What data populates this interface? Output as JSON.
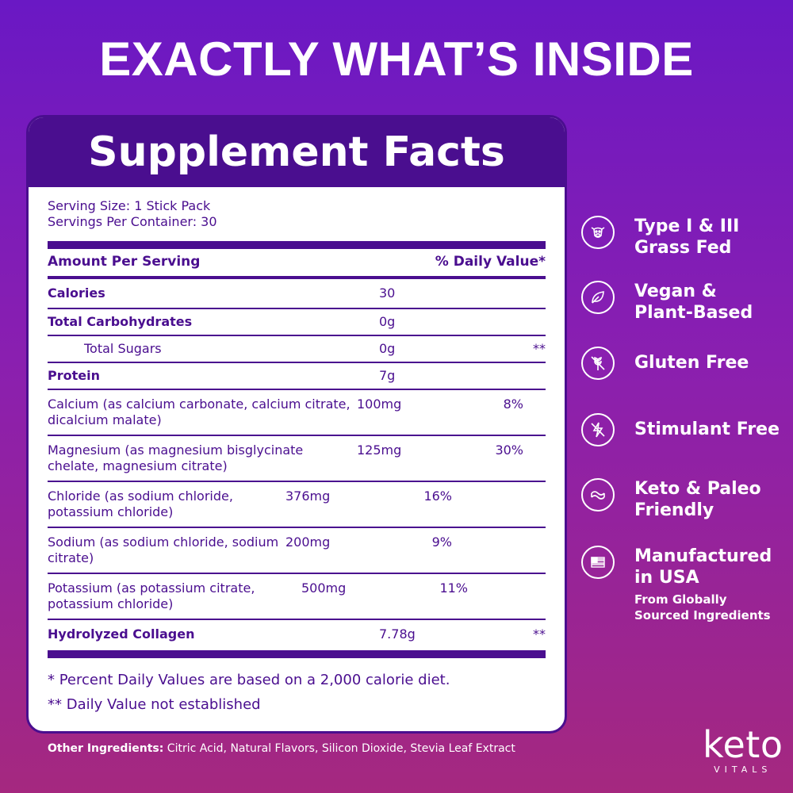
{
  "headline": "EXACTLY WHAT’S INSIDE",
  "facts": {
    "title": "Supplement Facts",
    "serving_size": "Serving Size: 1 Stick Pack",
    "servings_per_container": "Servings Per Container: 30",
    "amount_header": "Amount Per Serving",
    "dv_header": "% Daily Value*",
    "rows": [
      {
        "name": "Calories",
        "amount": "30",
        "dv": ""
      },
      {
        "name": "Total Carbohydrates",
        "amount": "0g",
        "dv": ""
      },
      {
        "name": "Total Sugars",
        "amount": "0g",
        "dv": "**"
      },
      {
        "name": "Protein",
        "amount": "7g",
        "dv": ""
      },
      {
        "name": "Calcium (as calcium carbonate, calcium citrate, dicalcium malate)",
        "amount": "100mg",
        "dv": "8%"
      },
      {
        "name": "Magnesium (as magnesium bisglycinate chelate, magnesium citrate)",
        "amount": "125mg",
        "dv": "30%"
      },
      {
        "name": "Chloride (as sodium chloride, potassium chloride)",
        "amount": "376mg",
        "dv": "16%"
      },
      {
        "name": "Sodium (as sodium chloride, sodium citrate)",
        "amount": "200mg",
        "dv": "9%"
      },
      {
        "name": "Potassium (as potassium citrate, potassium chloride)",
        "amount": "500mg",
        "dv": "11%"
      },
      {
        "name": "Hydrolyzed Collagen",
        "amount": "7.78g",
        "dv": "**"
      }
    ],
    "footnote1": "* Percent Daily Values are based on a 2,000 calorie diet.",
    "footnote2": "** Daily Value not established"
  },
  "features": [
    {
      "line1": "Type I & III",
      "line2": "Grass Fed",
      "icon": "cow-icon"
    },
    {
      "line1": "Vegan &",
      "line2": "Plant-Based",
      "icon": "leaf-icon"
    },
    {
      "line1": "Gluten Free",
      "line2": "",
      "icon": "wheat-icon"
    },
    {
      "line1": "Stimulant Free",
      "line2": "",
      "icon": "lightning-icon"
    },
    {
      "line1": "Keto & Paleo",
      "line2": "Friendly",
      "icon": "bacon-icon"
    },
    {
      "line1": "Manufactured",
      "line2": "in USA",
      "sub1": "From Globally",
      "sub2": "Sourced Ingredients",
      "icon": "flag-icon"
    }
  ],
  "other_ingredients": {
    "label": "Other Ingredients:",
    "text": " Citric Acid, Natural Flavors, Silicon Dioxide, Stevia Leaf Extract"
  },
  "logo": {
    "word": "keto",
    "sub": "VITALS"
  }
}
